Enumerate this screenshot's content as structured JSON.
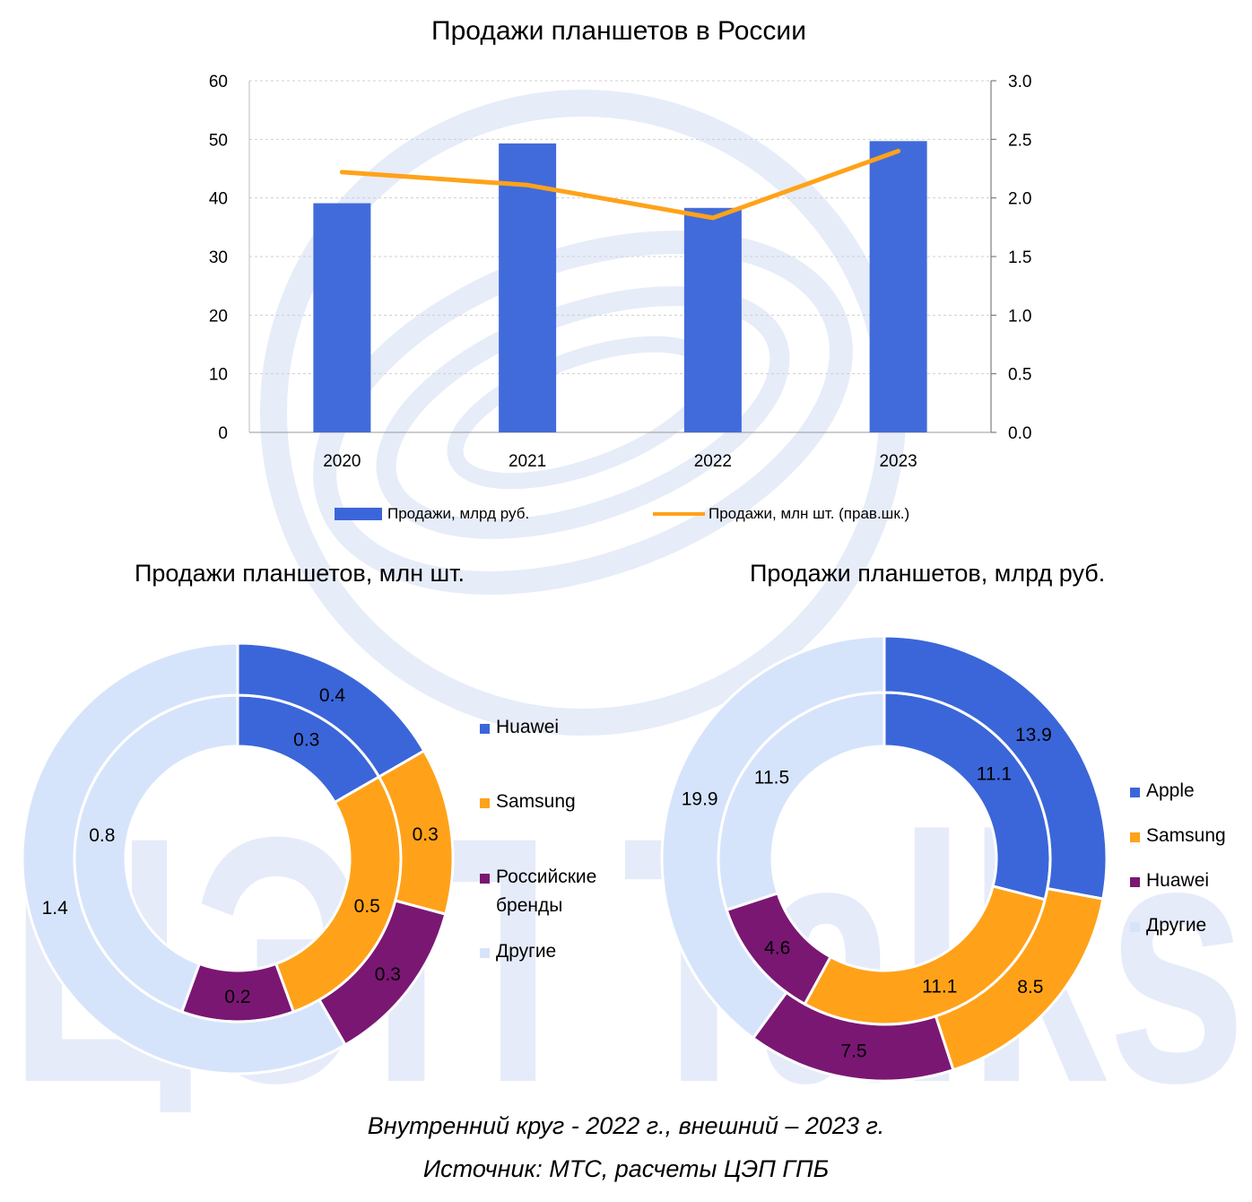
{
  "colors": {
    "blue": "#3B66D9",
    "orange": "#FFA219",
    "purple": "#7A1773",
    "light": "#D6E4FB"
  },
  "chart_data": [
    {
      "type": "bar",
      "title": "Продажи планшетов в России",
      "categories": [
        "2020",
        "2021",
        "2022",
        "2023"
      ],
      "series": [
        {
          "name": "Продажи, млрд руб.",
          "type": "bar",
          "axis": "left",
          "values": [
            39.1,
            49.3,
            38.3,
            49.7
          ]
        },
        {
          "name": "Продажи, млн шт. (прав.шк.)",
          "type": "line",
          "axis": "right",
          "values": [
            2.22,
            2.11,
            1.83,
            2.4
          ]
        }
      ],
      "ylim": [
        0,
        60
      ],
      "yticks": [
        "0",
        "10",
        "20",
        "30",
        "40",
        "50",
        "60"
      ],
      "y2lim": [
        0,
        3.0
      ],
      "y2ticks": [
        "0.0",
        "0.5",
        "1.0",
        "1.5",
        "2.0",
        "2.5",
        "3.0"
      ],
      "grid": true,
      "legend_position": "bottom"
    },
    {
      "type": "pie",
      "title": "Продажи планшетов, млн шт.",
      "categories": [
        "Huawei",
        "Samsung",
        "Российские бренды",
        "Другие"
      ],
      "legend_labels": [
        [
          "Huawei"
        ],
        [
          "Samsung"
        ],
        [
          "Российские",
          "бренды"
        ],
        [
          "Другие"
        ]
      ],
      "series": [
        {
          "name": "2022",
          "ring": "inner",
          "values": [
            0.3,
            0.5,
            0.2,
            0.8
          ],
          "labels": [
            "0.3",
            "0.5",
            "0.2",
            "0.8"
          ]
        },
        {
          "name": "2023",
          "ring": "outer",
          "values": [
            0.4,
            0.3,
            0.3,
            1.4
          ],
          "labels": [
            "0.4",
            "0.3",
            "0.3",
            "1.4"
          ]
        }
      ],
      "legend_position": "right"
    },
    {
      "type": "pie",
      "title": "Продажи планшетов, млрд руб.",
      "categories": [
        "Apple",
        "Samsung",
        "Huawei",
        "Другие"
      ],
      "legend_labels": [
        [
          "Apple"
        ],
        [
          "Samsung"
        ],
        [
          "Huawei"
        ],
        [
          "Другие"
        ]
      ],
      "series": [
        {
          "name": "2022",
          "ring": "inner",
          "values": [
            11.1,
            11.1,
            4.6,
            11.5
          ],
          "labels": [
            "11.1",
            "11.1",
            "4.6",
            "11.5"
          ]
        },
        {
          "name": "2023",
          "ring": "outer",
          "values": [
            13.9,
            8.5,
            7.5,
            19.9
          ],
          "labels": [
            "13.9",
            "8.5",
            "7.5",
            "19.9"
          ]
        }
      ],
      "legend_position": "right"
    }
  ],
  "watermark": {
    "text": "ЦЭП Talks"
  },
  "notes": {
    "rings": "Внутренний круг - 2022 г., внешний – 2023 г.",
    "source": "Источник: МТС, расчеты ЦЭП ГПБ"
  }
}
